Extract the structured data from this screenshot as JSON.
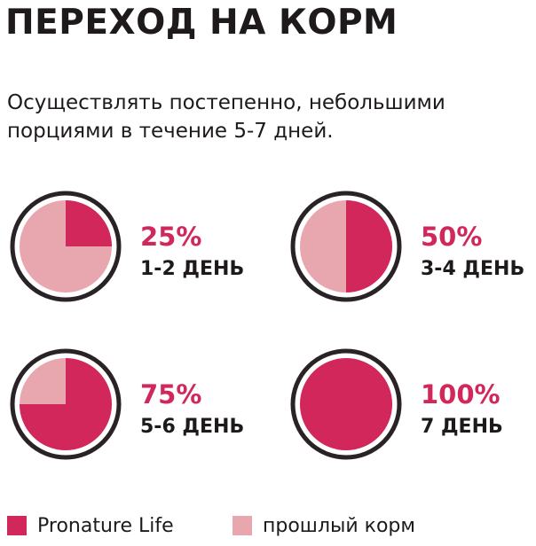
{
  "title": "ПЕРЕХОД НА КОРМ",
  "subtitle": "Осуществлять постепенно, небольшими порциями в течение 5-7 дней.",
  "colors": {
    "new_food": "#d1275a",
    "old_food": "#e8a7ae",
    "ring": "#2a2325",
    "text": "#1e1a1b"
  },
  "stages": [
    {
      "percent_label": "25%",
      "day_label": "1-2 ДЕНЬ",
      "new_food_share": 25
    },
    {
      "percent_label": "50%",
      "day_label": "3-4 ДЕНЬ",
      "new_food_share": 50
    },
    {
      "percent_label": "75%",
      "day_label": "5-6 ДЕНЬ",
      "new_food_share": 75
    },
    {
      "percent_label": "100%",
      "day_label": "7 ДЕНЬ",
      "new_food_share": 100
    }
  ],
  "legend": {
    "new_food_label": "Pronature Life",
    "old_food_label": "прошлый корм"
  }
}
